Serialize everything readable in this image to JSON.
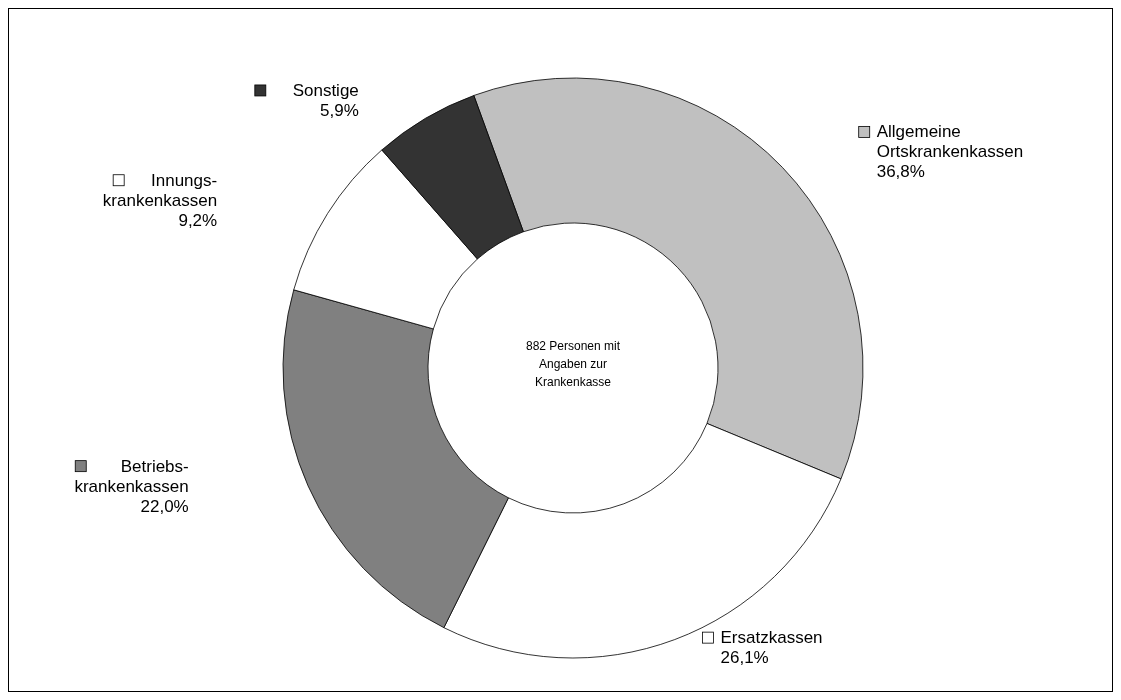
{
  "chart_data": {
    "type": "donut",
    "categories": [
      "Allgemeine Ortskrankenkassen",
      "Ersatzkassen",
      "Betriebs-krankenkassen",
      "Innungs-krankenkassen",
      "Sonstige"
    ],
    "values": [
      36.8,
      26.1,
      22.0,
      9.2,
      5.9
    ],
    "value_labels": [
      "36,8%",
      "26,1%",
      "22,0%",
      "9,2%",
      "5,9%"
    ],
    "colors": [
      "#c0c0c0",
      "#ffffff",
      "#808080",
      "#ffffff",
      "#333333"
    ],
    "legend": "right",
    "annotations": [
      "882 Personen mit Angaben zur Krankenkasse"
    ]
  }
}
